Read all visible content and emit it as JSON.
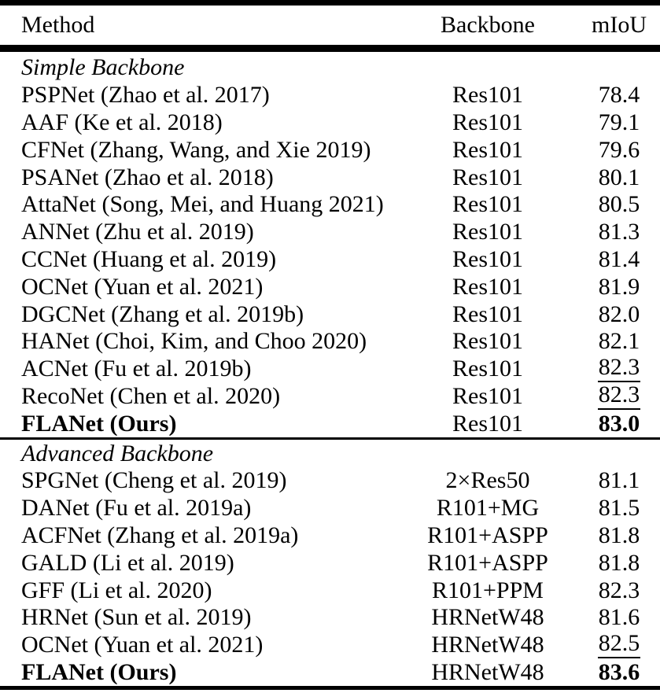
{
  "colors": {
    "text": "#000000",
    "background": "#ffffff",
    "rule": "#000000"
  },
  "table": {
    "columns": [
      "Method",
      "Backbone",
      "mIoU"
    ],
    "sections": [
      {
        "heading": "Simple Backbone",
        "rows": [
          {
            "method": "PSPNet (Zhao et al. 2017)",
            "backbone": "Res101",
            "miou": "78.4"
          },
          {
            "method": "AAF (Ke et al. 2018)",
            "backbone": "Res101",
            "miou": "79.1"
          },
          {
            "method": "CFNet (Zhang, Wang, and Xie 2019)",
            "backbone": "Res101",
            "miou": "79.6"
          },
          {
            "method": "PSANet (Zhao et al. 2018)",
            "backbone": "Res101",
            "miou": "80.1"
          },
          {
            "method": "AttaNet (Song, Mei, and Huang 2021)",
            "backbone": "Res101",
            "miou": "80.5"
          },
          {
            "method": "ANNet (Zhu et al. 2019)",
            "backbone": "Res101",
            "miou": "81.3"
          },
          {
            "method": "CCNet (Huang et al. 2019)",
            "backbone": "Res101",
            "miou": "81.4"
          },
          {
            "method": "OCNet (Yuan et al. 2021)",
            "backbone": "Res101",
            "miou": "81.9"
          },
          {
            "method": "DGCNet (Zhang et al. 2019b)",
            "backbone": "Res101",
            "miou": "82.0"
          },
          {
            "method": "HANet (Choi, Kim, and Choo 2020)",
            "backbone": "Res101",
            "miou": "82.1"
          },
          {
            "method": "ACNet (Fu et al. 2019b)",
            "backbone": "Res101",
            "miou": "82.3",
            "miou_underline": true
          },
          {
            "method": "RecoNet (Chen et al. 2020)",
            "backbone": "Res101",
            "miou": "82.3",
            "miou_underline": true
          },
          {
            "method": "FLANet (Ours)",
            "backbone": "Res101",
            "miou": "83.0",
            "method_bold": true,
            "miou_bold": true
          }
        ]
      },
      {
        "heading": "Advanced Backbone",
        "rows": [
          {
            "method": "SPGNet (Cheng et al. 2019)",
            "backbone": "2×Res50",
            "miou": "81.1"
          },
          {
            "method": "DANet (Fu et al. 2019a)",
            "backbone": "R101+MG",
            "miou": "81.5"
          },
          {
            "method": "ACFNet (Zhang et al. 2019a)",
            "backbone": "R101+ASPP",
            "miou": "81.8"
          },
          {
            "method": "GALD (Li et al. 2019)",
            "backbone": "R101+ASPP",
            "miou": "81.8"
          },
          {
            "method": "GFF (Li et al. 2020)",
            "backbone": "R101+PPM",
            "miou": "82.3"
          },
          {
            "method": "HRNet (Sun et al. 2019)",
            "backbone": "HRNetW48",
            "miou": "81.6"
          },
          {
            "method": "OCNet (Yuan et al. 2021)",
            "backbone": "HRNetW48",
            "miou": "82.5",
            "miou_underline": true
          },
          {
            "method": "FLANet (Ours)",
            "backbone": "HRNetW48",
            "miou": "83.6",
            "method_bold": true,
            "miou_bold": true
          }
        ]
      }
    ]
  }
}
